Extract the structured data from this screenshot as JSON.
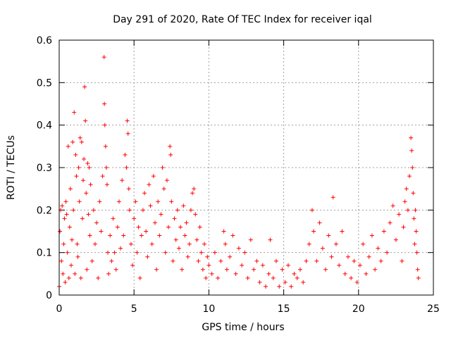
{
  "chart_data": {
    "type": "scatter",
    "title": "Day 291 of 2020, Rate Of TEC Index for receiver iqal",
    "xlabel": "GPS time / hours",
    "ylabel": "ROTI / TECUs",
    "xlim": [
      0,
      25
    ],
    "ylim": [
      0,
      0.6
    ],
    "xticks": [
      "0",
      "5",
      "10",
      "15",
      "20",
      "25"
    ],
    "yticks": [
      "0",
      "0.1",
      "0.2",
      "0.3",
      "0.4",
      "0.5",
      "0.6"
    ],
    "grid": true,
    "legend": "none",
    "marker": "plus",
    "color": "#ff0000",
    "series": [
      {
        "points": [
          [
            0.0,
            0.02
          ],
          [
            0.05,
            0.15
          ],
          [
            0.1,
            0.2
          ],
          [
            0.15,
            0.08
          ],
          [
            0.2,
            0.21
          ],
          [
            0.25,
            0.05
          ],
          [
            0.3,
            0.12
          ],
          [
            0.35,
            0.18
          ],
          [
            0.4,
            0.03
          ],
          [
            0.45,
            0.22
          ],
          [
            0.5,
            0.19
          ],
          [
            0.55,
            0.1
          ],
          [
            0.6,
            0.35
          ],
          [
            0.65,
            0.04
          ],
          [
            0.7,
            0.16
          ],
          [
            0.75,
            0.25
          ],
          [
            0.8,
            0.07
          ],
          [
            0.85,
            0.13
          ],
          [
            0.9,
            0.36
          ],
          [
            0.95,
            0.2
          ],
          [
            1.0,
            0.43
          ],
          [
            1.05,
            0.05
          ],
          [
            1.1,
            0.33
          ],
          [
            1.15,
            0.28
          ],
          [
            1.2,
            0.12
          ],
          [
            1.25,
            0.09
          ],
          [
            1.3,
            0.3
          ],
          [
            1.35,
            0.22
          ],
          [
            1.4,
            0.37
          ],
          [
            1.45,
            0.04
          ],
          [
            1.5,
            0.36
          ],
          [
            1.55,
            0.18
          ],
          [
            1.6,
            0.27
          ],
          [
            1.65,
            0.32
          ],
          [
            1.7,
            0.49
          ],
          [
            1.75,
            0.41
          ],
          [
            1.8,
            0.24
          ],
          [
            1.85,
            0.06
          ],
          [
            1.9,
            0.31
          ],
          [
            1.95,
            0.19
          ],
          [
            2.0,
            0.3
          ],
          [
            2.05,
            0.14
          ],
          [
            2.1,
            0.26
          ],
          [
            2.2,
            0.08
          ],
          [
            2.3,
            0.2
          ],
          [
            2.4,
            0.12
          ],
          [
            2.5,
            0.17
          ],
          [
            2.6,
            0.04
          ],
          [
            2.7,
            0.22
          ],
          [
            2.8,
            0.15
          ],
          [
            2.9,
            0.28
          ],
          [
            3.0,
            0.56
          ],
          [
            3.02,
            0.45
          ],
          [
            3.05,
            0.4
          ],
          [
            3.1,
            0.35
          ],
          [
            3.15,
            0.3
          ],
          [
            3.2,
            0.26
          ],
          [
            3.25,
            0.1
          ],
          [
            3.3,
            0.05
          ],
          [
            3.4,
            0.14
          ],
          [
            3.5,
            0.08
          ],
          [
            3.6,
            0.18
          ],
          [
            3.7,
            0.1
          ],
          [
            3.8,
            0.06
          ],
          [
            3.9,
            0.16
          ],
          [
            4.0,
            0.22
          ],
          [
            4.1,
            0.11
          ],
          [
            4.2,
            0.27
          ],
          [
            4.3,
            0.14
          ],
          [
            4.4,
            0.33
          ],
          [
            4.5,
            0.3
          ],
          [
            4.55,
            0.41
          ],
          [
            4.6,
            0.38
          ],
          [
            4.65,
            0.25
          ],
          [
            4.7,
            0.2
          ],
          [
            4.8,
            0.12
          ],
          [
            4.9,
            0.07
          ],
          [
            5.0,
            0.18
          ],
          [
            5.1,
            0.22
          ],
          [
            5.2,
            0.1
          ],
          [
            5.3,
            0.16
          ],
          [
            5.4,
            0.04
          ],
          [
            5.5,
            0.14
          ],
          [
            5.6,
            0.2
          ],
          [
            5.7,
            0.24
          ],
          [
            5.8,
            0.15
          ],
          [
            5.9,
            0.09
          ],
          [
            6.0,
            0.26
          ],
          [
            6.1,
            0.21
          ],
          [
            6.2,
            0.12
          ],
          [
            6.3,
            0.28
          ],
          [
            6.4,
            0.17
          ],
          [
            6.5,
            0.06
          ],
          [
            6.6,
            0.22
          ],
          [
            6.7,
            0.14
          ],
          [
            6.8,
            0.19
          ],
          [
            6.9,
            0.3
          ],
          [
            7.0,
            0.25
          ],
          [
            7.1,
            0.1
          ],
          [
            7.2,
            0.27
          ],
          [
            7.3,
            0.16
          ],
          [
            7.4,
            0.35
          ],
          [
            7.45,
            0.33
          ],
          [
            7.5,
            0.22
          ],
          [
            7.6,
            0.08
          ],
          [
            7.7,
            0.18
          ],
          [
            7.8,
            0.13
          ],
          [
            7.9,
            0.2
          ],
          [
            8.0,
            0.11
          ],
          [
            8.1,
            0.16
          ],
          [
            8.2,
            0.06
          ],
          [
            8.3,
            0.21
          ],
          [
            8.4,
            0.14
          ],
          [
            8.5,
            0.17
          ],
          [
            8.6,
            0.09
          ],
          [
            8.7,
            0.12
          ],
          [
            8.8,
            0.2
          ],
          [
            8.9,
            0.24
          ],
          [
            9.0,
            0.25
          ],
          [
            9.1,
            0.19
          ],
          [
            9.2,
            0.13
          ],
          [
            9.3,
            0.08
          ],
          [
            9.4,
            0.16
          ],
          [
            9.5,
            0.1
          ],
          [
            9.6,
            0.06
          ],
          [
            9.7,
            0.12
          ],
          [
            9.8,
            0.04
          ],
          [
            9.9,
            0.09
          ],
          [
            10.0,
            0.07
          ],
          [
            10.2,
            0.05
          ],
          [
            10.4,
            0.1
          ],
          [
            10.6,
            0.04
          ],
          [
            10.8,
            0.08
          ],
          [
            11.0,
            0.15
          ],
          [
            11.1,
            0.12
          ],
          [
            11.2,
            0.06
          ],
          [
            11.4,
            0.09
          ],
          [
            11.6,
            0.14
          ],
          [
            11.8,
            0.05
          ],
          [
            12.0,
            0.11
          ],
          [
            12.2,
            0.07
          ],
          [
            12.4,
            0.1
          ],
          [
            12.6,
            0.04
          ],
          [
            12.8,
            0.13
          ],
          [
            13.0,
            0.06
          ],
          [
            13.2,
            0.08
          ],
          [
            13.4,
            0.03
          ],
          [
            13.6,
            0.07
          ],
          [
            13.8,
            0.02
          ],
          [
            14.0,
            0.05
          ],
          [
            14.1,
            0.13
          ],
          [
            14.3,
            0.04
          ],
          [
            14.5,
            0.08
          ],
          [
            14.7,
            0.02
          ],
          [
            14.9,
            0.06
          ],
          [
            15.1,
            0.03
          ],
          [
            15.3,
            0.07
          ],
          [
            15.5,
            0.02
          ],
          [
            15.7,
            0.05
          ],
          [
            15.9,
            0.04
          ],
          [
            16.1,
            0.06
          ],
          [
            16.3,
            0.03
          ],
          [
            16.5,
            0.08
          ],
          [
            16.7,
            0.12
          ],
          [
            16.9,
            0.2
          ],
          [
            17.0,
            0.15
          ],
          [
            17.2,
            0.08
          ],
          [
            17.4,
            0.17
          ],
          [
            17.6,
            0.11
          ],
          [
            17.8,
            0.06
          ],
          [
            18.0,
            0.14
          ],
          [
            18.2,
            0.09
          ],
          [
            18.3,
            0.23
          ],
          [
            18.5,
            0.12
          ],
          [
            18.7,
            0.07
          ],
          [
            18.9,
            0.15
          ],
          [
            19.1,
            0.05
          ],
          [
            19.3,
            0.09
          ],
          [
            19.5,
            0.04
          ],
          [
            19.7,
            0.08
          ],
          [
            19.9,
            0.03
          ],
          [
            20.1,
            0.07
          ],
          [
            20.3,
            0.12
          ],
          [
            20.5,
            0.05
          ],
          [
            20.7,
            0.09
          ],
          [
            20.9,
            0.14
          ],
          [
            21.1,
            0.06
          ],
          [
            21.3,
            0.11
          ],
          [
            21.5,
            0.08
          ],
          [
            21.7,
            0.15
          ],
          [
            21.9,
            0.1
          ],
          [
            22.1,
            0.17
          ],
          [
            22.3,
            0.21
          ],
          [
            22.5,
            0.13
          ],
          [
            22.7,
            0.19
          ],
          [
            22.9,
            0.08
          ],
          [
            23.0,
            0.16
          ],
          [
            23.1,
            0.22
          ],
          [
            23.2,
            0.25
          ],
          [
            23.3,
            0.2
          ],
          [
            23.4,
            0.28
          ],
          [
            23.5,
            0.37
          ],
          [
            23.55,
            0.34
          ],
          [
            23.6,
            0.3
          ],
          [
            23.65,
            0.24
          ],
          [
            23.7,
            0.18
          ],
          [
            23.75,
            0.12
          ],
          [
            23.8,
            0.2
          ],
          [
            23.85,
            0.15
          ],
          [
            23.9,
            0.1
          ],
          [
            23.95,
            0.06
          ],
          [
            24.0,
            0.04
          ]
        ]
      }
    ]
  }
}
